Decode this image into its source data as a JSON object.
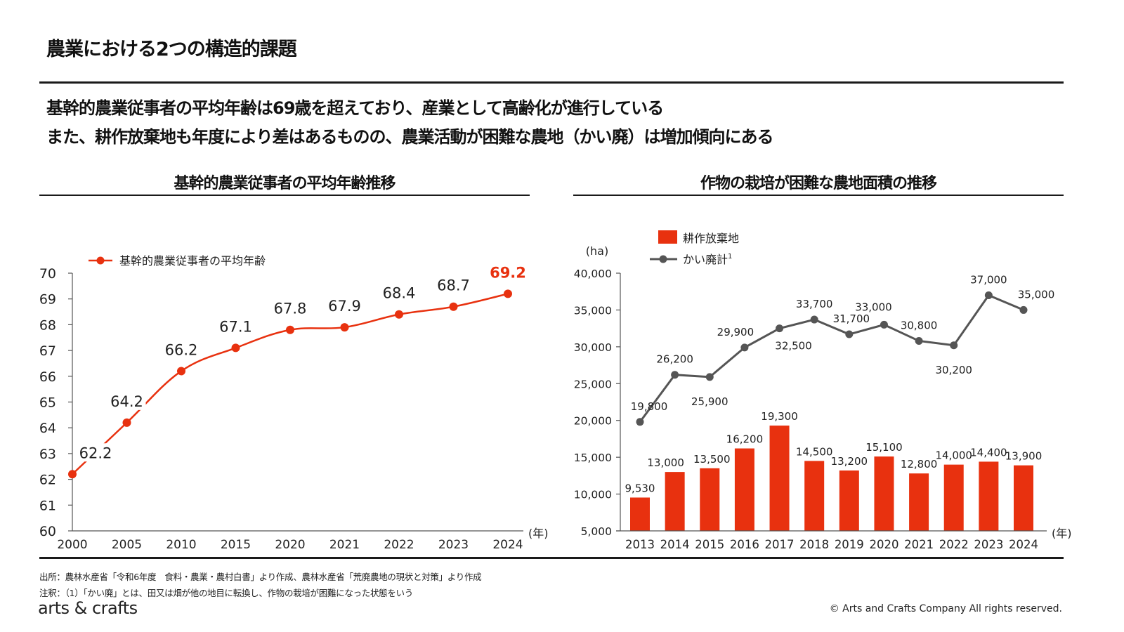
{
  "page": {
    "title": "農業における2つの構造的課題",
    "lead_line_1": "基幹的農業従事者の平均年齢は69歳を超えており、産業として高齢化が進行している",
    "lead_line_2": "また、耕作放棄地も年度により差はあるものの、農業活動が困難な農地（かい廃）は増加傾向にある"
  },
  "footer": {
    "source": "出所：農林水産省「令和6年度　食料・農業・農村白書」より作成、農林水産省「荒廃農地の現状と対策」より作成",
    "note": "注釈：（1）「かい廃」とは、田又は畑が他の地目に転換し、作物の栽培が困難になった状態をいう",
    "logo": "arts & crafts",
    "copyright": "© Arts and Crafts Company All rights reserved."
  },
  "colors": {
    "accent_red": "#e8310f",
    "series_gray": "#555555",
    "axis": "#555555",
    "text": "#1a1a1a"
  },
  "chart_data": [
    {
      "type": "line",
      "title": "基幹的農業従事者の平均年齢推移",
      "xlabel": "(年)",
      "ylabel": "",
      "categories": [
        "2000",
        "2005",
        "2010",
        "2015",
        "2020",
        "2021",
        "2022",
        "2023",
        "2024"
      ],
      "series": [
        {
          "name": "基幹的農業従事者の平均年齢",
          "color": "#e8310f",
          "values": [
            62.2,
            64.2,
            66.2,
            67.1,
            67.8,
            67.9,
            68.4,
            68.7,
            69.2
          ]
        }
      ],
      "data_labels": [
        "62.2",
        "64.2",
        "66.2",
        "67.1",
        "67.8",
        "67.9",
        "68.4",
        "68.7",
        "69.2"
      ],
      "highlight_last": true,
      "ylim": [
        60,
        70
      ],
      "yticks": [
        60,
        61,
        62,
        63,
        64,
        65,
        66,
        67,
        68,
        69,
        70
      ],
      "ytick_labels": [
        "60",
        "61",
        "62",
        "63",
        "64",
        "65",
        "66",
        "67",
        "68",
        "69",
        "70"
      ],
      "grid": false,
      "legend": "top-left"
    },
    {
      "type": "bar+line",
      "title": "作物の栽培が困難な農地面積の推移",
      "xlabel": "(年)",
      "ylabel": "(ha)",
      "categories": [
        "2013",
        "2014",
        "2015",
        "2016",
        "2017",
        "2018",
        "2019",
        "2020",
        "2021",
        "2022",
        "2023",
        "2024"
      ],
      "series": [
        {
          "name": "耕作放棄地",
          "kind": "bar",
          "color": "#e8310f",
          "values": [
            9530,
            13000,
            13500,
            16200,
            19300,
            14500,
            13200,
            15100,
            12800,
            14000,
            14400,
            13900
          ],
          "labels": [
            "9,530",
            "13,000",
            "13,500",
            "16,200",
            "19,300",
            "14,500",
            "13,200",
            "15,100",
            "12,800",
            "14,000",
            "14,400",
            "13,900"
          ]
        },
        {
          "name": "かい廃計",
          "name_superscript": "1",
          "kind": "line",
          "color": "#555555",
          "values": [
            19800,
            26200,
            25900,
            29900,
            32500,
            33700,
            31700,
            33000,
            30800,
            30200,
            37000,
            35000
          ],
          "labels": [
            "19,800",
            "26,200",
            "25,900",
            "29,900",
            "32,500",
            "33,700",
            "31,700",
            "33,000",
            "30,800",
            "30,200",
            "37,000",
            "35,000"
          ]
        }
      ],
      "ylim": [
        5000,
        40000
      ],
      "yticks": [
        5000,
        10000,
        15000,
        20000,
        25000,
        30000,
        35000,
        40000
      ],
      "ytick_labels": [
        "5,000",
        "10,000",
        "15,000",
        "20,000",
        "25,000",
        "30,000",
        "35,000",
        "40,000"
      ],
      "grid": false,
      "legend": "top-left"
    }
  ]
}
